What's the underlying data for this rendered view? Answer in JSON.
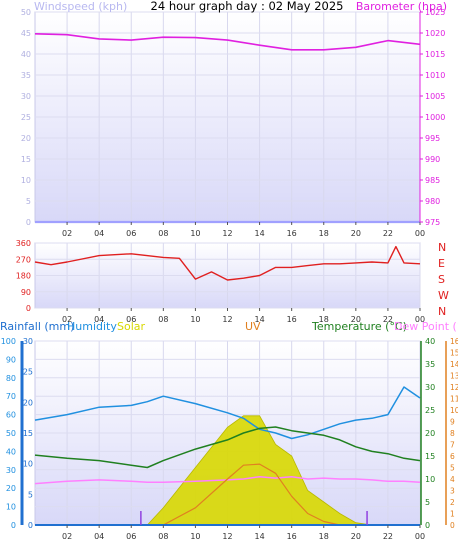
{
  "title": "24 hour graph day : 02 May 2025",
  "colors": {
    "windspeed": "#a0a0ff",
    "barometer": "#e020e0",
    "wind_direction": "#e02020",
    "rainfall": "#2070d0",
    "humidity": "#2090e0",
    "solar": "#d8d800",
    "uv": "#e08020",
    "temperature": "#208020",
    "dew_point": "#ff80ff",
    "panel_top": "#ffffff",
    "panel_bottom": "#d8d8f8"
  },
  "time_axis_labels": [
    "02",
    "04",
    "06",
    "08",
    "10",
    "12",
    "14",
    "16",
    "18",
    "20",
    "22",
    "00"
  ],
  "chart_data": [
    {
      "type": "line",
      "id": "top",
      "left_label": "Windspeed (kph)",
      "right_label": "Barometer (hpa)",
      "left_ticks": [
        "0",
        "5",
        "10",
        "15",
        "20",
        "25",
        "30",
        "35",
        "40",
        "45",
        "50"
      ],
      "right_ticks": [
        "975",
        "980",
        "985",
        "990",
        "995",
        "1000",
        "1005",
        "1010",
        "1015",
        "1020",
        "1025"
      ],
      "x": [
        "00:00",
        "02:00",
        "04:00",
        "06:00",
        "08:00",
        "10:00",
        "12:00",
        "14:00",
        "16:00",
        "18:00",
        "20:00",
        "22:00",
        "00:00"
      ],
      "series": [
        {
          "name": "Barometer (hpa)",
          "axis": "right",
          "ylim": [
            975,
            1025
          ],
          "values": [
            1019.8,
            1019.6,
            1018.6,
            1018.3,
            1019.0,
            1018.9,
            1018.3,
            1017.1,
            1016.0,
            1016.0,
            1016.6,
            1018.2,
            1017.3
          ]
        },
        {
          "name": "Windspeed (kph)",
          "axis": "left",
          "ylim": [
            0,
            50
          ],
          "values": [
            0,
            0,
            0,
            0,
            0,
            0,
            0,
            0,
            0,
            0,
            0,
            0,
            0
          ]
        }
      ]
    },
    {
      "type": "line",
      "id": "wind",
      "left_ticks": [
        "0",
        "90",
        "180",
        "270",
        "360"
      ],
      "right_labels": [
        "N",
        "W",
        "S",
        "E",
        "N"
      ],
      "ylim": [
        0,
        360
      ],
      "x": [
        "00:00",
        "01:00",
        "02:00",
        "04:00",
        "06:00",
        "08:00",
        "09:00",
        "10:00",
        "11:00",
        "12:00",
        "13:00",
        "14:00",
        "15:00",
        "16:00",
        "17:00",
        "18:00",
        "19:00",
        "20:00",
        "21:00",
        "22:00",
        "22:30",
        "23:00",
        "00:00"
      ],
      "series": [
        {
          "name": "Wind direction",
          "values": [
            255,
            240,
            255,
            290,
            300,
            280,
            275,
            160,
            200,
            155,
            165,
            180,
            225,
            225,
            235,
            245,
            245,
            250,
            255,
            250,
            340,
            250,
            245
          ]
        }
      ]
    },
    {
      "type": "area",
      "id": "bottom",
      "legend": [
        "Rainfall (mm)",
        "Humidity",
        "Solar",
        "UV",
        "Temperature (°C)",
        "Dew Point (°C)"
      ],
      "humidity_ticks": [
        "0",
        "10",
        "20",
        "30",
        "40",
        "50",
        "60",
        "70",
        "80",
        "90",
        "100"
      ],
      "rain_ticks": [
        "0",
        "5",
        "10",
        "15",
        "20",
        "25",
        "30"
      ],
      "temp_ticks": [
        "0",
        "5",
        "10",
        "15",
        "20",
        "25",
        "30",
        "35",
        "40"
      ],
      "uv_ticks": [
        "0",
        "1",
        "2",
        "3",
        "4",
        "5",
        "6",
        "7",
        "8",
        "9",
        "10",
        "11",
        "12",
        "13",
        "14",
        "15",
        "16"
      ],
      "x": [
        "00:00",
        "02:00",
        "04:00",
        "06:00",
        "07:00",
        "08:00",
        "10:00",
        "12:00",
        "13:00",
        "14:00",
        "15:00",
        "16:00",
        "17:00",
        "18:00",
        "19:00",
        "20:00",
        "21:00",
        "22:00",
        "23:00",
        "00:00"
      ],
      "series": [
        {
          "name": "Humidity",
          "axis": "humidity",
          "ylim": [
            0,
            100
          ],
          "values": [
            57,
            60,
            64,
            65,
            67,
            70,
            66,
            61,
            58,
            52,
            50,
            47,
            49,
            52,
            55,
            57,
            58,
            60,
            75,
            69
          ]
        },
        {
          "name": "Temperature (°C)",
          "axis": "temp",
          "ylim": [
            0,
            40
          ],
          "values": [
            15.2,
            14.5,
            14.0,
            13.0,
            12.5,
            14.0,
            16.5,
            18.5,
            20.0,
            21.0,
            21.3,
            20.5,
            20.0,
            19.5,
            18.5,
            17.0,
            16.0,
            15.5,
            14.5,
            14.0
          ]
        },
        {
          "name": "Dew Point (°C)",
          "axis": "temp",
          "ylim": [
            0,
            40
          ],
          "values": [
            9.0,
            9.5,
            9.8,
            9.5,
            9.3,
            9.3,
            9.5,
            9.8,
            10.0,
            10.5,
            10.2,
            10.5,
            10.0,
            10.2,
            10.0,
            10.0,
            9.8,
            9.5,
            9.5,
            9.3
          ]
        },
        {
          "name": "Solar",
          "axis": "uv",
          "ylim": [
            0,
            16
          ],
          "values": [
            0,
            0,
            0,
            0,
            0,
            1.5,
            5,
            8.5,
            9.5,
            9.5,
            7,
            6,
            3,
            2,
            1,
            0.2,
            0,
            0,
            0,
            0
          ]
        },
        {
          "name": "UV",
          "axis": "uv",
          "ylim": [
            0,
            16
          ],
          "values": [
            0,
            0,
            0,
            0,
            0,
            0,
            1.5,
            4,
            5.2,
            5.3,
            4.5,
            2.5,
            1,
            0.3,
            0,
            0,
            0,
            0,
            0,
            0
          ]
        },
        {
          "name": "Rainfall (mm)",
          "axis": "rain",
          "ylim": [
            0,
            30
          ],
          "values": [
            0,
            0,
            0,
            0,
            0,
            0,
            0,
            0,
            0,
            0,
            0,
            0,
            0,
            0,
            0,
            0,
            0,
            0,
            0,
            0
          ]
        }
      ]
    }
  ]
}
